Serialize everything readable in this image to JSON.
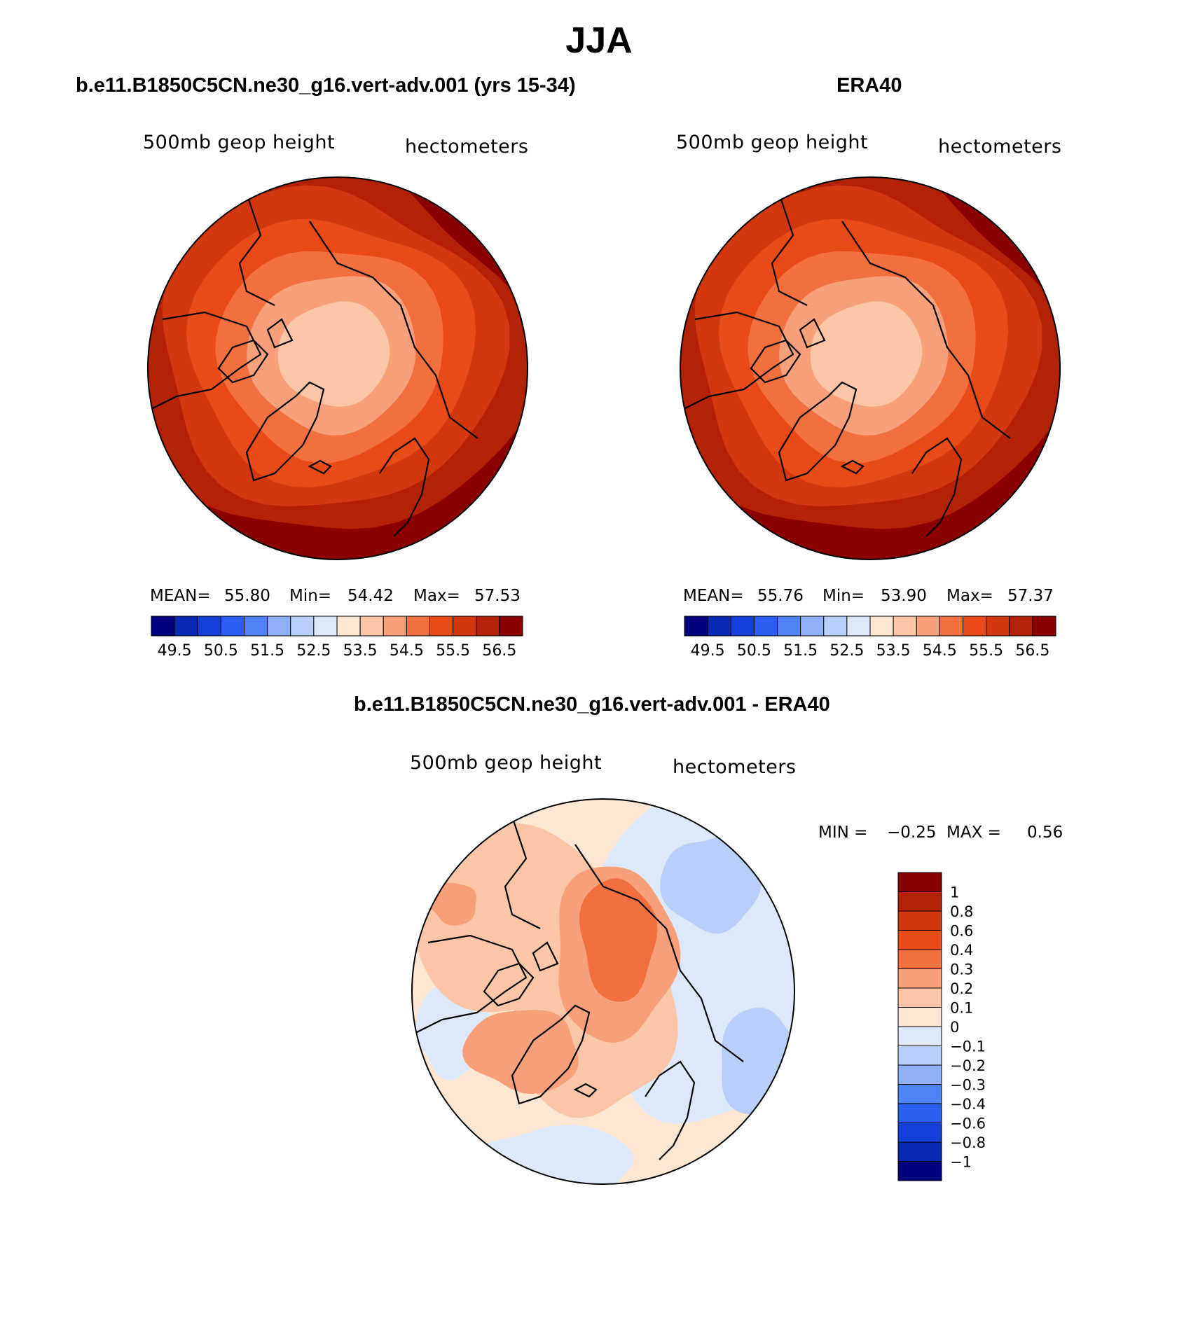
{
  "figure": {
    "title": "JJA"
  },
  "palette": {
    "full": [
      "#00007f",
      "#0a2ab5",
      "#1240d8",
      "#2b5ff0",
      "#4f84f5",
      "#8fb0f7",
      "#b8cffa",
      "#dde9fb",
      "#fde6d2",
      "#fbc6a8",
      "#f7a07a",
      "#f26f40",
      "#e84a18",
      "#d23810",
      "#b32206",
      "#8a0000"
    ]
  },
  "panels": [
    {
      "title": "b.e11.B1850C5CN.ne30_g16.vert-adv.001 (yrs 15-34)",
      "variable": "500mb geop height",
      "units": "hectometers",
      "stats": {
        "mean_label": "MEAN=",
        "mean": "55.80",
        "min_label": "Min=",
        "min": "54.42",
        "max_label": "Max=",
        "max": "57.53"
      },
      "colorbar_ticks": [
        "49.5",
        "50.5",
        "51.5",
        "52.5",
        "53.5",
        "54.5",
        "55.5",
        "56.5"
      ],
      "center_level": 53.9
    },
    {
      "title": "ERA40",
      "variable": "500mb geop height",
      "units": "hectometers",
      "stats": {
        "mean_label": "MEAN=",
        "mean": "55.76",
        "min_label": "Min=",
        "min": "53.90",
        "max_label": "Max=",
        "max": "57.37"
      },
      "colorbar_ticks": [
        "49.5",
        "50.5",
        "51.5",
        "52.5",
        "53.5",
        "54.5",
        "55.5",
        "56.5"
      ],
      "center_level": 53.6
    }
  ],
  "difference": {
    "title": "b.e11.B1850C5CN.ne30_g16.vert-adv.001 - ERA40",
    "variable": "500mb geop height",
    "units": "hectometers",
    "stats": {
      "min_label": "MIN =",
      "min": "−0.25",
      "max_label": "MAX =",
      "max": "0.56"
    },
    "colorbar_labels": [
      "1",
      "0.8",
      "0.6",
      "0.4",
      "0.3",
      "0.2",
      "0.1",
      "0",
      "−0.1",
      "−0.2",
      "−0.3",
      "−0.4",
      "−0.6",
      "−0.8",
      "−1"
    ],
    "colorbar_colors": [
      "#8a0000",
      "#b32206",
      "#d23810",
      "#e84a18",
      "#f26f40",
      "#f7a07a",
      "#fbc6a8",
      "#fde6d2",
      "#dde9fb",
      "#b8cffa",
      "#8fb0f7",
      "#4f84f5",
      "#2b5ff0",
      "#1240d8",
      "#0a2ab5",
      "#00007f"
    ]
  }
}
